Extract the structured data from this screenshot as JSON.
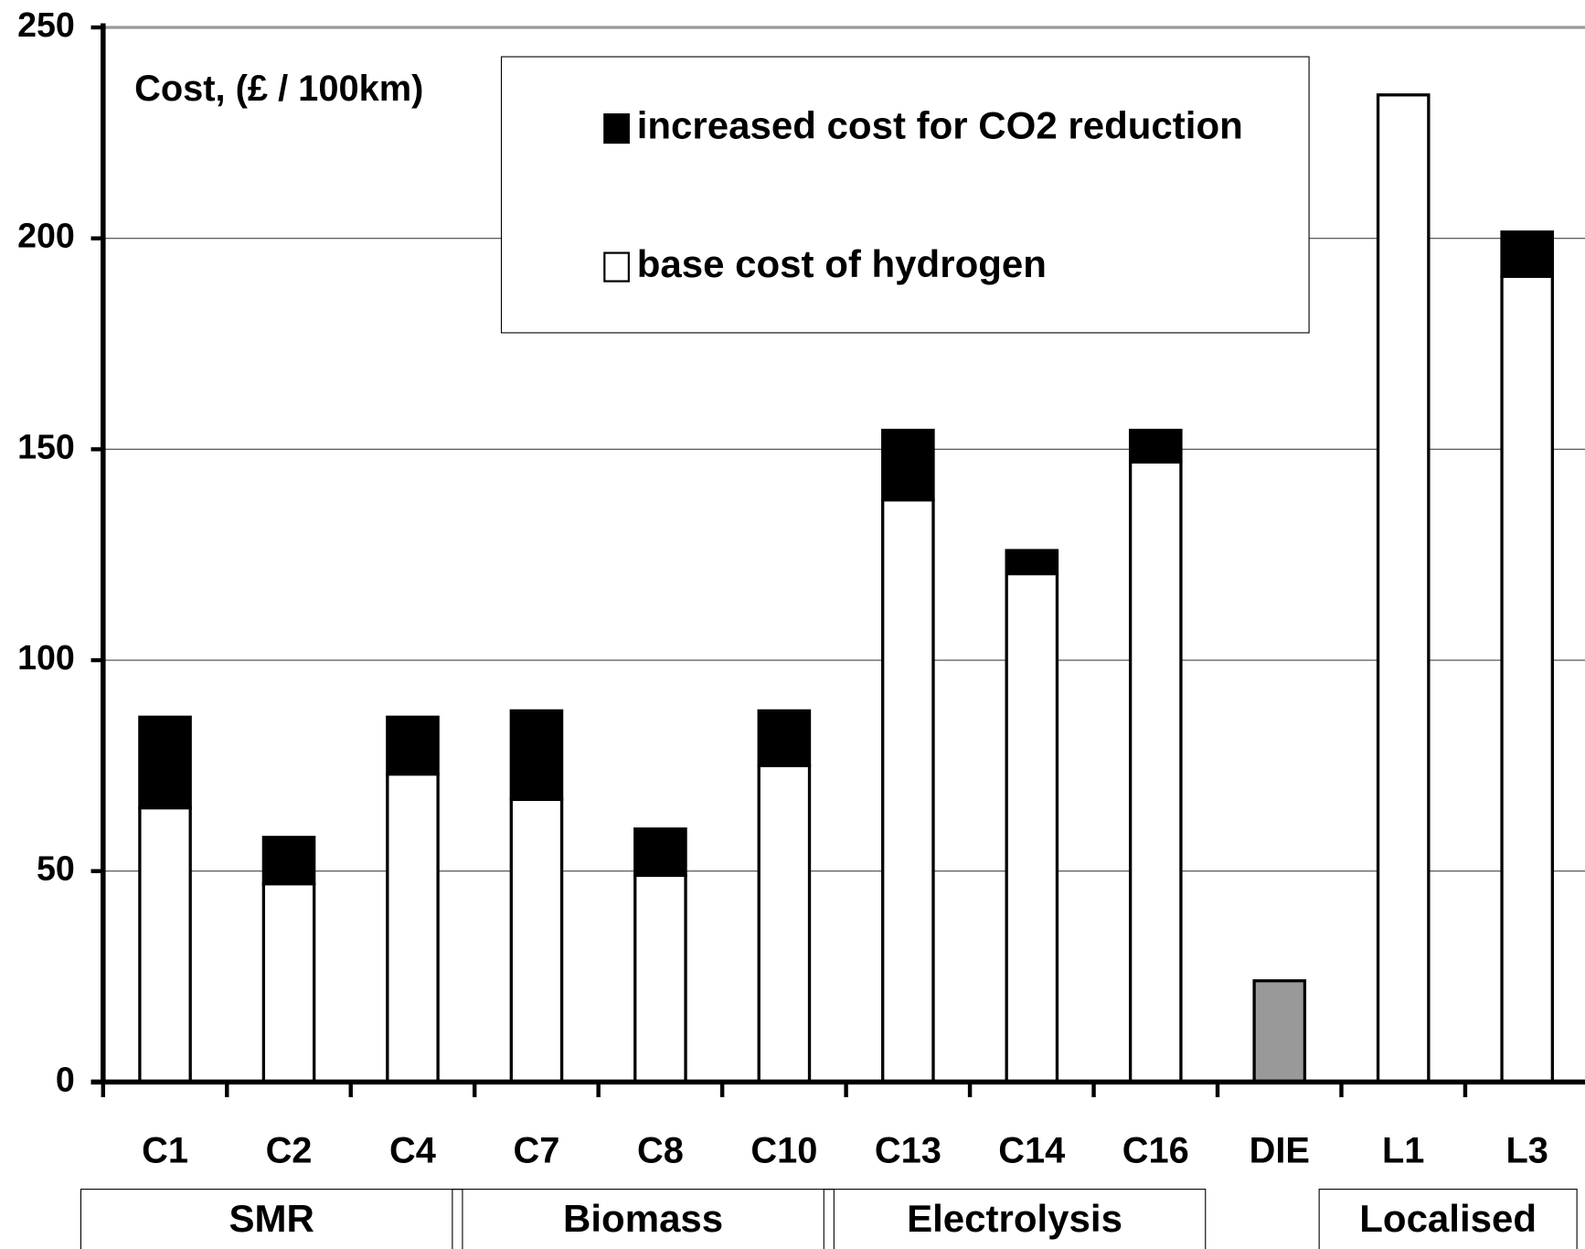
{
  "chart_data": {
    "type": "stacked_bar",
    "y_label": "Cost, (£ / 100km)",
    "categories": [
      "C1",
      "C2",
      "C4",
      "C7",
      "C8",
      "C10",
      "C13",
      "C14",
      "C16",
      "DIE",
      "L1",
      "L3"
    ],
    "series": [
      {
        "name": "base cost of hydrogen",
        "color": "#ffffff",
        "colors": [
          "#ffffff",
          "#ffffff",
          "#ffffff",
          "#ffffff",
          "#ffffff",
          "#ffffff",
          "#ffffff",
          "#ffffff",
          "#ffffff",
          "#999999",
          "#ffffff",
          "#ffffff"
        ],
        "values": [
          65,
          47,
          73,
          67,
          49,
          75,
          138,
          120.5,
          147,
          24,
          234,
          191
        ]
      },
      {
        "name": "increased cost for CO2 reduction",
        "color": "#000000",
        "values": [
          21.5,
          11,
          13.5,
          21,
          11,
          13,
          16.5,
          5.5,
          7.5,
          null,
          null,
          10.5
        ]
      }
    ],
    "groups": [
      {
        "label": "SMR",
        "span": [
          0,
          2
        ]
      },
      {
        "label": "Biomass",
        "span": [
          3,
          5
        ]
      },
      {
        "label": "Electrolysis",
        "span": [
          6,
          8
        ]
      },
      {
        "label": "Localised",
        "span": [
          10,
          11
        ]
      }
    ],
    "ylim": [
      0,
      250
    ],
    "yticks": [
      0,
      50,
      100,
      150,
      200,
      250
    ],
    "grid": true
  }
}
